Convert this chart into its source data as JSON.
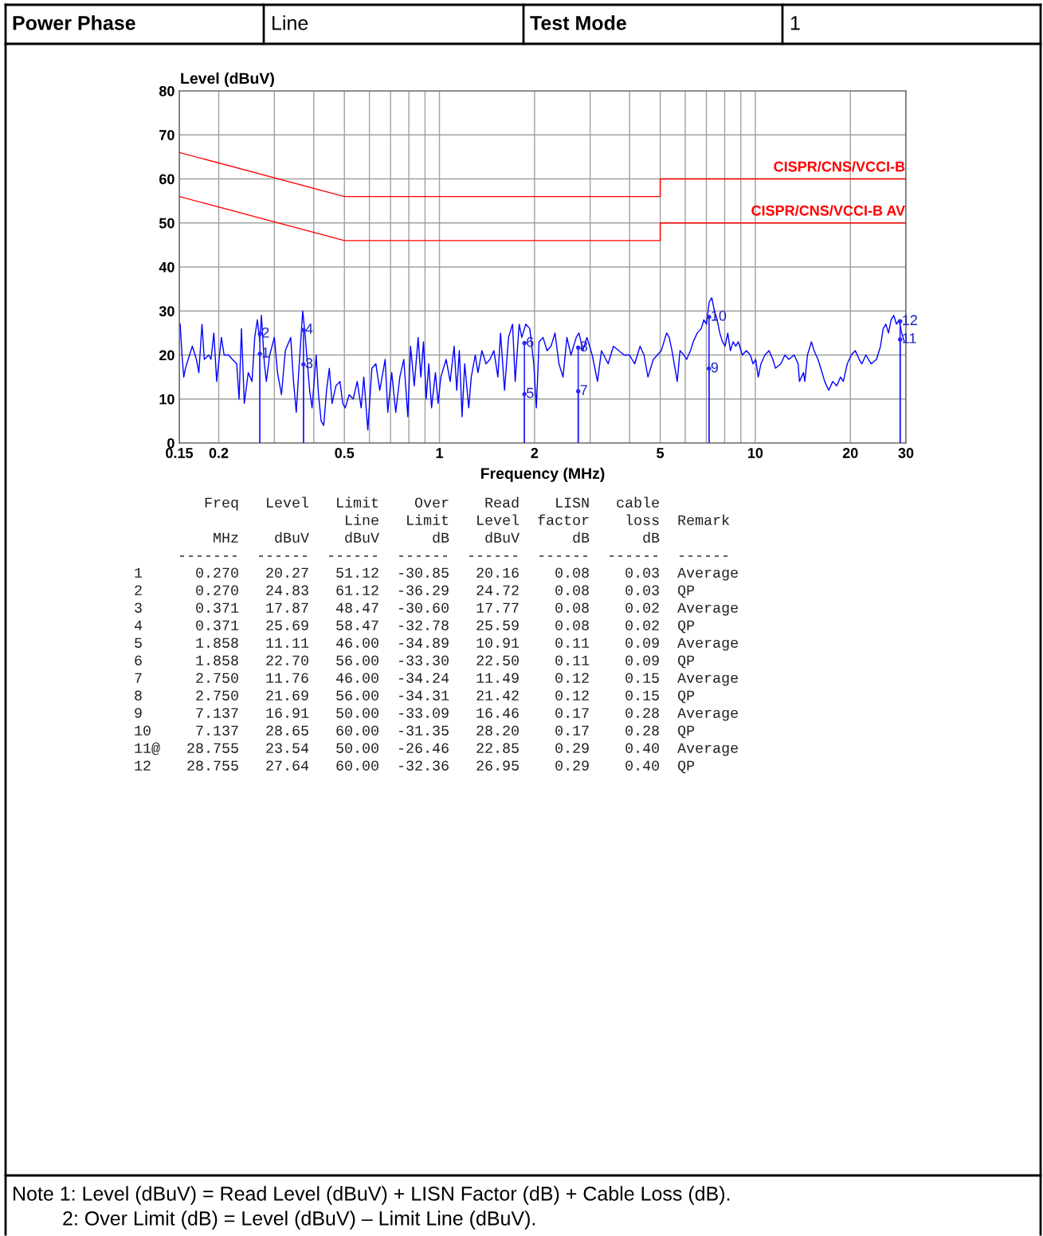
{
  "chart_data": {
    "type": "line",
    "xlabel": "Frequency (MHz)",
    "ylabel": "Level (dBuV)",
    "log": "x",
    "grid": true,
    "xlim": [
      0.15,
      30
    ],
    "ylim": [
      0,
      80
    ],
    "xticks": [
      {
        "value": 0.15,
        "label": "0.15"
      },
      0.2,
      {
        "value": 0.3,
        "label": null
      },
      {
        "value": 0.4,
        "label": null
      },
      0.5,
      {
        "value": 0.6,
        "label": null
      },
      {
        "value": 0.7,
        "label": null
      },
      {
        "value": 0.8,
        "label": null
      },
      {
        "value": 0.9,
        "label": null
      },
      1,
      2,
      {
        "value": 3,
        "label": null
      },
      {
        "value": 4,
        "label": null
      },
      5,
      {
        "value": 6,
        "label": null
      },
      {
        "value": 7,
        "label": null
      },
      {
        "value": 8,
        "label": null
      },
      {
        "value": 9,
        "label": null
      },
      10,
      20,
      30
    ],
    "yticks": [
      0,
      10,
      20,
      30,
      40,
      50,
      60,
      70,
      80
    ],
    "series": [
      {
        "color": "#0000ff",
        "x": [
          0.151,
          0.153,
          0.155,
          0.157,
          0.16,
          0.165,
          0.17,
          0.173,
          0.177,
          0.18,
          0.186,
          0.189,
          0.193,
          0.197,
          0.204,
          0.208,
          0.215,
          0.221,
          0.228,
          0.232,
          0.236,
          0.241,
          0.248,
          0.255,
          0.26,
          0.265,
          0.27,
          0.273,
          0.279,
          0.283,
          0.29,
          0.3,
          0.307,
          0.316,
          0.325,
          0.338,
          0.345,
          0.352,
          0.359,
          0.369,
          0.375,
          0.38,
          0.388,
          0.395,
          0.407,
          0.414,
          0.422,
          0.43,
          0.439,
          0.448,
          0.457,
          0.47,
          0.484,
          0.494,
          0.503,
          0.518,
          0.533,
          0.549,
          0.565,
          0.576,
          0.593,
          0.611,
          0.629,
          0.647,
          0.673,
          0.686,
          0.706,
          0.727,
          0.749,
          0.771,
          0.794,
          0.81,
          0.832,
          0.856,
          0.873,
          0.89,
          0.908,
          0.925,
          0.944,
          0.971,
          0.99,
          1.01,
          1.05,
          1.081,
          1.113,
          1.134,
          1.156,
          1.179,
          1.202,
          1.238,
          1.261,
          1.298,
          1.324,
          1.363,
          1.404,
          1.445,
          1.487,
          1.531,
          1.561,
          1.607,
          1.655,
          1.704,
          1.737,
          1.788,
          1.823,
          1.876,
          1.932,
          1.989,
          2.027,
          2.067,
          2.128,
          2.191,
          2.255,
          2.322,
          2.39,
          2.461,
          2.533,
          2.608,
          2.711,
          2.765,
          2.846,
          2.93,
          3.045,
          3.165,
          3.258,
          3.421,
          3.555,
          3.696,
          3.842,
          3.995,
          4.152,
          4.317,
          4.443,
          4.573,
          4.756,
          5.04,
          5.238,
          5.34,
          5.447,
          5.661,
          5.775,
          5.942,
          6.06,
          6.236,
          6.36,
          6.55,
          6.741,
          6.874,
          7.007,
          7.145,
          7.283,
          7.426,
          7.573,
          7.721,
          7.873,
          8.025,
          8.182,
          8.339,
          8.506,
          8.672,
          8.838,
          9.1,
          9.371,
          9.647,
          9.833,
          10.03,
          10.22,
          10.42,
          10.73,
          11.05,
          11.37,
          11.59,
          12.05,
          12.41,
          12.77,
          13.28,
          13.67,
          13.8,
          14.21,
          14.35,
          14.63,
          15.06,
          15.35,
          15.8,
          16.12,
          16.59,
          17.08,
          17.59,
          18.1,
          18.63,
          19.0,
          19.56,
          20.13,
          20.73,
          21.34,
          21.76,
          22.4,
          23.28,
          24.2,
          24.92,
          25.41,
          25.9,
          26.41,
          26.92,
          27.45,
          27.99,
          28.53,
          29.08,
          29.66
        ],
        "values": [
          27,
          20,
          15,
          17,
          19,
          22,
          19,
          16,
          27,
          19,
          20,
          19,
          25,
          14,
          24,
          20,
          20,
          19,
          18,
          10,
          26,
          9,
          16,
          14,
          24,
          28,
          23,
          29,
          18,
          14,
          20,
          24,
          16,
          11,
          21,
          24,
          14,
          7,
          17,
          30,
          25,
          20,
          12,
          8,
          20,
          11,
          5,
          4,
          12,
          17,
          9,
          13,
          14,
          9,
          8,
          11,
          10,
          14,
          8,
          15,
          3,
          17,
          18,
          12,
          19,
          7,
          16,
          7,
          15,
          19,
          6,
          22,
          13,
          24,
          15,
          23,
          10,
          18,
          8,
          16,
          9,
          15,
          19,
          14,
          22,
          12,
          21,
          6,
          18,
          8,
          15,
          20,
          16,
          21,
          18,
          19,
          21,
          15,
          25,
          12,
          24,
          27,
          14,
          27,
          24,
          27,
          26,
          18,
          8,
          23,
          24,
          21,
          22,
          25,
          18,
          15,
          24,
          20,
          24,
          25,
          21,
          24,
          20,
          14,
          21,
          18,
          22,
          21,
          20,
          20,
          18,
          22,
          20,
          15,
          19,
          21,
          25,
          24,
          21,
          14,
          21,
          20,
          19,
          21,
          23,
          25,
          26,
          28,
          27,
          32,
          33,
          30,
          28,
          25,
          23,
          22,
          25,
          21,
          23,
          22,
          23,
          20,
          21,
          20,
          18,
          19,
          15,
          18,
          20,
          21,
          19,
          17,
          18,
          20,
          19,
          20,
          18,
          14,
          16,
          14,
          20,
          23,
          21,
          19,
          17,
          14,
          12,
          14,
          13,
          15,
          14,
          18,
          20,
          21,
          19,
          18,
          20,
          18,
          19,
          22,
          26,
          27,
          25,
          28,
          29,
          27,
          28,
          25,
          23
        ]
      },
      {
        "name": "CISPR/CNS/VCCI-B",
        "color": "#ff0000",
        "x": [
          0.15,
          0.5,
          5,
          5,
          30
        ],
        "values": [
          66,
          56,
          56,
          60,
          60
        ]
      },
      {
        "name": "CISPR/CNS/VCCI-B AV",
        "color": "#ff0000",
        "x": [
          0.15,
          0.5,
          5,
          5,
          30
        ],
        "values": [
          56,
          46,
          46,
          50,
          50
        ]
      },
      {
        "type": "lollipop",
        "color": "#2828ff",
        "x": [
          0.27,
          0.27,
          0.371,
          0.371,
          1.858,
          1.858,
          2.75,
          2.75,
          7.137,
          7.137,
          28.755,
          28.755
        ],
        "values": [
          20.27,
          24.83,
          17.87,
          25.69,
          11.11,
          22.7,
          11.76,
          21.69,
          16.91,
          28.65,
          23.54,
          27.64
        ]
      }
    ],
    "annotations": [
      {
        "text": "1",
        "x": 0.27,
        "y": 20.27
      },
      {
        "text": "2",
        "x": 0.27,
        "y": 24.83
      },
      {
        "text": "3",
        "x": 0.371,
        "y": 17.87
      },
      {
        "text": "4",
        "x": 0.371,
        "y": 25.69
      },
      {
        "text": "5",
        "x": 1.858,
        "y": 11.11
      },
      {
        "text": "6",
        "x": 1.858,
        "y": 22.7
      },
      {
        "text": "7",
        "x": 2.75,
        "y": 11.76
      },
      {
        "text": "8",
        "x": 2.75,
        "y": 21.69
      },
      {
        "text": "9",
        "x": 7.137,
        "y": 16.91
      },
      {
        "text": "10",
        "x": 7.137,
        "y": 28.65
      },
      {
        "text": "11",
        "x": 28.755,
        "y": 23.54
      },
      {
        "text": "12",
        "x": 28.755,
        "y": 27.64
      },
      "Power Phase",
      "Line",
      "Test Mode",
      "1",
      "        Freq   Level   Limit    Over    Read    LISN   cable",
      "                        Line   Limit   Level  factor    loss  Remark",
      "         MHz    dBuV    dBuV      dB    dBuV      dB      dB",
      "     -------  ------  ------  ------  ------  ------  ------  ------",
      "1      0.270   20.27   51.12  -30.85   20.16    0.08    0.03  Average",
      "2      0.270   24.83   61.12  -36.29   24.72    0.08    0.03  QP",
      "3      0.371   17.87   48.47  -30.60   17.77    0.08    0.02  Average",
      "4      0.371   25.69   58.47  -32.78   25.59    0.08    0.02  QP",
      "5      1.858   11.11   46.00  -34.89   10.91    0.11    0.09  Average",
      "6      1.858   22.70   56.00  -33.30   22.50    0.11    0.09  QP",
      "7      2.750   11.76   46.00  -34.24   11.49    0.12    0.15  Average",
      "8      2.750   21.69   56.00  -34.31   21.42    0.12    0.15  QP",
      "9      7.137   16.91   50.00  -33.09   16.46    0.17    0.28  Average",
      "10     7.137   28.65   60.00  -31.35   28.20    0.17    0.28  QP",
      "11@   28.755   23.54   50.00  -26.46   22.85    0.29    0.40  Average",
      "12    28.755   27.64   60.00  -32.36   26.95    0.29    0.40  QP",
      "Note 1: Level (dBuV) = Read Level (dBuV) + LISN Factor (dB) + Cable Loss (dB).",
      "2: Over Limit (dB) = Level (dBuV) – Limit Line (dBuV)."
    ]
  }
}
